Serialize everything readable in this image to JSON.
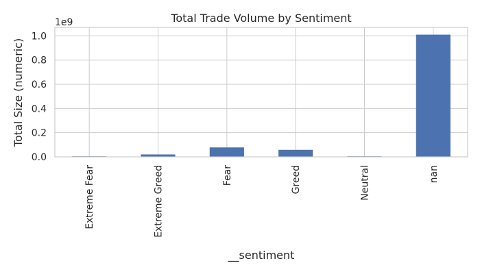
{
  "chart_data": {
    "type": "bar",
    "title": "Total Trade Volume by Sentiment",
    "xlabel": "__sentiment",
    "ylabel": "Total Size (numeric)",
    "offset_text": "1e9",
    "categories": [
      "Extreme Fear",
      "Extreme Greed",
      "Fear",
      "Greed",
      "Neutral",
      "nan"
    ],
    "values": [
      0.005,
      0.02,
      0.078,
      0.058,
      0.005,
      1.01
    ],
    "ylim": [
      0,
      1.07
    ],
    "yticks": [
      0.0,
      0.2,
      0.4,
      0.6,
      0.8,
      1.0
    ],
    "ytick_labels": [
      "0.0",
      "0.2",
      "0.4",
      "0.6",
      "0.8",
      "1.0"
    ],
    "grid": true,
    "bar_color": "#4c72b0",
    "grid_color": "#cccccc"
  }
}
